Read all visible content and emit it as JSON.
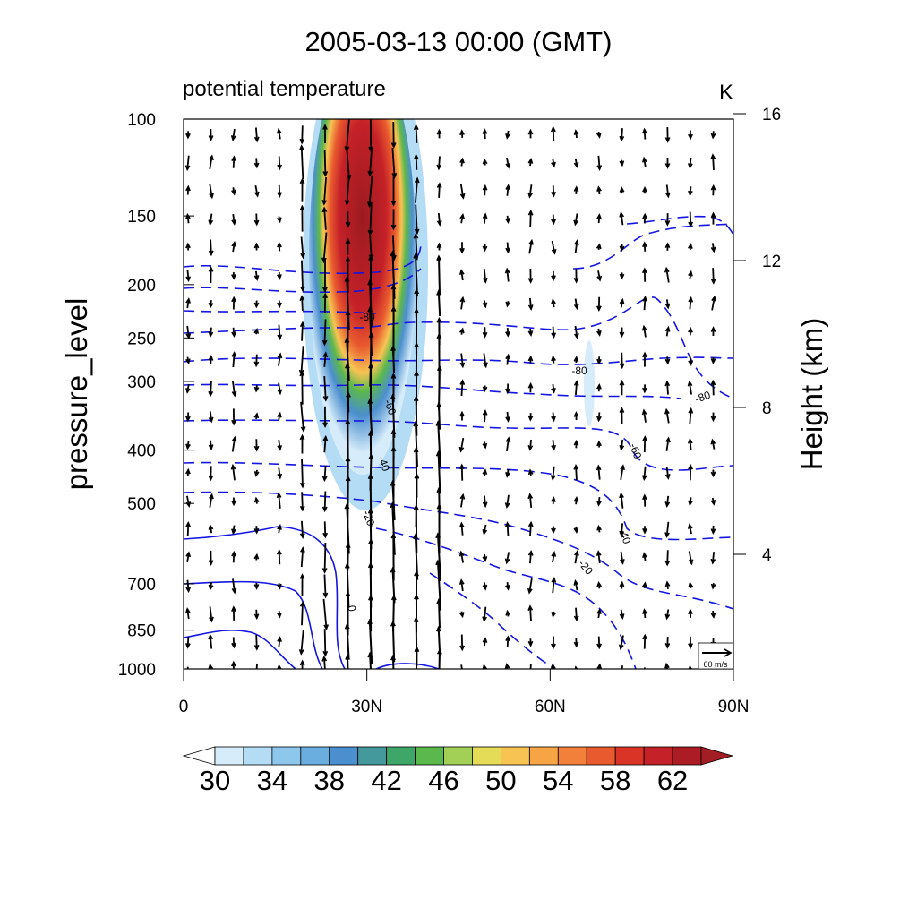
{
  "chart_data": {
    "type": "heatmap",
    "title": "2005-03-13 00:00 (GMT)",
    "subtitle_left": "potential temperature",
    "subtitle_right": "K",
    "ylabel": "pressure_level",
    "ylabel_right": "Height (km)",
    "x_ticks": [
      {
        "value": 0,
        "label": "0"
      },
      {
        "value": 30,
        "label": "30N"
      },
      {
        "value": 60,
        "label": "60N"
      },
      {
        "value": 90,
        "label": "90N"
      }
    ],
    "xlim": [
      0,
      90
    ],
    "y_ticks": [
      {
        "value": 100,
        "label": "100"
      },
      {
        "value": 150,
        "label": "150"
      },
      {
        "value": 200,
        "label": "200"
      },
      {
        "value": 250,
        "label": "250"
      },
      {
        "value": 300,
        "label": "300"
      },
      {
        "value": 400,
        "label": "400"
      },
      {
        "value": 500,
        "label": "500"
      },
      {
        "value": 700,
        "label": "700"
      },
      {
        "value": 850,
        "label": "850"
      },
      {
        "value": 1000,
        "label": "1000"
      }
    ],
    "ylim": [
      1000,
      100
    ],
    "y_scale": "log",
    "y_right_ticks": [
      {
        "value": 16,
        "label": "16"
      },
      {
        "value": 12,
        "label": "12"
      },
      {
        "value": 8,
        "label": "8"
      },
      {
        "value": 4,
        "label": "4"
      }
    ],
    "colorbar": {
      "levels": [
        30,
        32,
        34,
        36,
        38,
        40,
        42,
        44,
        46,
        48,
        50,
        52,
        54,
        56,
        58,
        60,
        62,
        64
      ],
      "labels": [
        "30",
        "34",
        "38",
        "42",
        "46",
        "50",
        "54",
        "58",
        "62"
      ],
      "colors": [
        "#d6ecfa",
        "#b4dcf5",
        "#8ec7ec",
        "#6aaee0",
        "#4b8fce",
        "#43999c",
        "#3fa66a",
        "#5bb84c",
        "#a2cf55",
        "#e4dc57",
        "#f7c453",
        "#f7a544",
        "#f2803a",
        "#e95a2f",
        "#d93426",
        "#c52128",
        "#ab1c24"
      ],
      "extend_low_color": "#ffffff",
      "extend_high_color": "#a31d24"
    },
    "contour_labels": [
      "-80",
      "-60",
      "-40",
      "-20",
      "0",
      "-80",
      "-80",
      "-60",
      "-40",
      "-20"
    ],
    "reference_vector": {
      "label": "60 m/s",
      "magnitude": 60
    }
  }
}
